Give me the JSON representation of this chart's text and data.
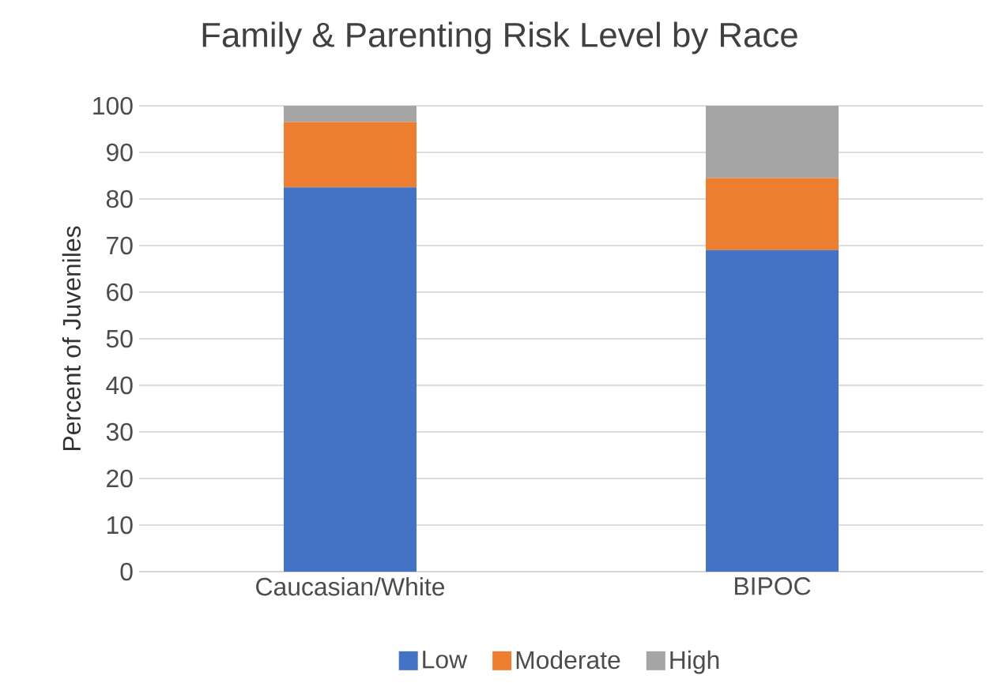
{
  "chart_data": {
    "type": "bar",
    "title": "Family & Parenting Risk Level by Race",
    "ylabel": "Percent of Juveniles",
    "categories": [
      "Caucasian/White",
      "BIPOC"
    ],
    "series": [
      {
        "name": "Low",
        "color": "#4472c4",
        "values": [
          82.5,
          69
        ]
      },
      {
        "name": "Moderate",
        "color": "#ed7d31",
        "values": [
          14,
          15.5
        ]
      },
      {
        "name": "High",
        "color": "#a5a5a5",
        "values": [
          3.5,
          15.5
        ]
      }
    ],
    "stacked": true,
    "ylim": [
      0,
      100
    ],
    "yticks": [
      0,
      10,
      20,
      30,
      40,
      50,
      60,
      70,
      80,
      90,
      100
    ],
    "grid": "y",
    "legend": "bottom"
  }
}
